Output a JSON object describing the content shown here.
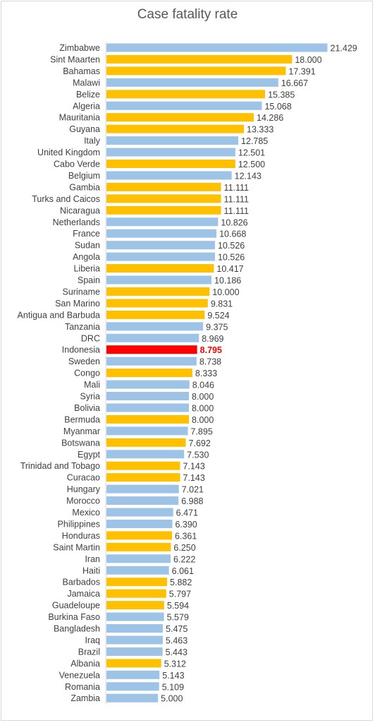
{
  "chart_data": {
    "type": "bar",
    "orientation": "horizontal",
    "title": "Case fatality rate",
    "colors": {
      "blue": "#9dc3e6",
      "orange": "#ffc000",
      "highlight": "#ff0000"
    },
    "highlight": "Indonesia",
    "grid": false,
    "legend": "none",
    "xlim": [
      0,
      22
    ],
    "categories": [
      "Zimbabwe",
      "Sint Maarten",
      "Bahamas",
      "Malawi",
      "Belize",
      "Algeria",
      "Mauritania",
      "Guyana",
      "Italy",
      "United Kingdom",
      "Cabo Verde",
      "Belgium",
      "Gambia",
      "Turks and Caicos",
      "Nicaragua",
      "Netherlands",
      "France",
      "Sudan",
      "Angola",
      "Liberia",
      "Spain",
      "Suriname",
      "San Marino",
      "Antigua and Barbuda",
      "Tanzania",
      "DRC",
      "Indonesia",
      "Sweden",
      "Congo",
      "Mali",
      "Syria",
      "Bolivia",
      "Bermuda",
      "Myanmar",
      "Botswana",
      "Egypt",
      "Trinidad and Tobago",
      "Curacao",
      "Hungary",
      "Morocco",
      "Mexico",
      "Philippines",
      "Honduras",
      "Saint Martin",
      "Iran",
      "Haiti",
      "Barbados",
      "Jamaica",
      "Guadeloupe",
      "Burkina Faso",
      "Bangladesh",
      "Iraq",
      "Brazil",
      "Albania",
      "Venezuela",
      "Romania",
      "Zambia"
    ],
    "values": [
      21.429,
      18.0,
      17.391,
      16.667,
      15.385,
      15.068,
      14.286,
      13.333,
      12.785,
      12.501,
      12.5,
      12.143,
      11.111,
      11.111,
      11.111,
      10.826,
      10.668,
      10.526,
      10.526,
      10.417,
      10.186,
      10.0,
      9.831,
      9.524,
      9.375,
      8.969,
      8.795,
      8.738,
      8.333,
      8.046,
      8.0,
      8.0,
      8.0,
      7.895,
      7.692,
      7.53,
      7.143,
      7.143,
      7.021,
      6.988,
      6.471,
      6.39,
      6.361,
      6.25,
      6.222,
      6.061,
      5.882,
      5.797,
      5.594,
      5.579,
      5.475,
      5.463,
      5.443,
      5.312,
      5.143,
      5.109,
      5.0
    ],
    "labels": [
      "21.429",
      "18.000",
      "17.391",
      "16.667",
      "15.385",
      "15.068",
      "14.286",
      "13.333",
      "12.785",
      "12.501",
      "12.500",
      "12.143",
      "11.111",
      "11.111",
      "11.111",
      "10.826",
      "10.668",
      "10.526",
      "10.526",
      "10.417",
      "10.186",
      "10.000",
      "9.831",
      "9.524",
      "9.375",
      "8.969",
      "8.795",
      "8.738",
      "8.333",
      "8.046",
      "8.000",
      "8.000",
      "8.000",
      "7.895",
      "7.692",
      "7.530",
      "7.143",
      "7.143",
      "7.021",
      "6.988",
      "6.471",
      "6.390",
      "6.361",
      "6.250",
      "6.222",
      "6.061",
      "5.882",
      "5.797",
      "5.594",
      "5.579",
      "5.475",
      "5.463",
      "5.443",
      "5.312",
      "5.143",
      "5.109",
      "5.000"
    ],
    "bar_color": [
      "blue",
      "orange",
      "orange",
      "blue",
      "orange",
      "blue",
      "orange",
      "orange",
      "blue",
      "blue",
      "orange",
      "blue",
      "orange",
      "orange",
      "orange",
      "blue",
      "blue",
      "blue",
      "blue",
      "orange",
      "blue",
      "orange",
      "orange",
      "orange",
      "blue",
      "blue",
      "highlight",
      "blue",
      "orange",
      "blue",
      "blue",
      "blue",
      "orange",
      "blue",
      "orange",
      "blue",
      "orange",
      "orange",
      "blue",
      "blue",
      "blue",
      "blue",
      "orange",
      "orange",
      "blue",
      "blue",
      "orange",
      "orange",
      "orange",
      "blue",
      "blue",
      "blue",
      "blue",
      "orange",
      "blue",
      "blue",
      "blue"
    ]
  }
}
